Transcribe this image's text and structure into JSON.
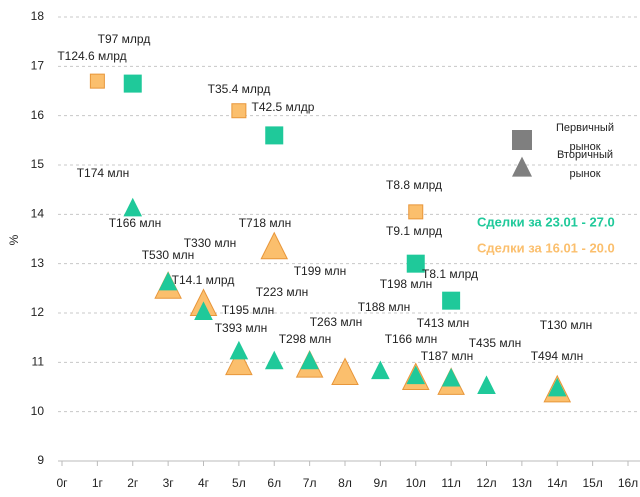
{
  "chart_data": {
    "type": "scatter",
    "y_label": "%",
    "categories": [
      "0г",
      "1г",
      "2г",
      "3г",
      "4г",
      "5л",
      "6л",
      "7л",
      "8л",
      "9л",
      "10л",
      "11л",
      "12л",
      "13л",
      "14л",
      "15л",
      "16л"
    ],
    "ylim": [
      9,
      18
    ],
    "yticks": [
      9,
      10,
      11,
      12,
      13,
      14,
      15,
      16,
      17,
      18
    ],
    "grid": true,
    "period_labels": [
      {
        "text": "Сделки за 23.01 - 27.0",
        "color": "#1fc99a"
      },
      {
        "text": "Сделки за 16.01 - 20.0",
        "color": "#fbbf6d"
      }
    ],
    "legend": [
      {
        "lines": [
          "Первичный",
          "рынок"
        ],
        "marker": "square",
        "color": "#7f7f7f"
      },
      {
        "lines": [
          "Вторичный",
          "рынок"
        ],
        "marker": "triangle",
        "color": "#7f7f7f"
      }
    ],
    "series": [
      {
        "period": 1,
        "marker": "triangle",
        "color": "#fbbf6d",
        "stroke": "#e8963a",
        "values": [
          null,
          null,
          null,
          12.5,
          12.15,
          10.95,
          13.3,
          10.9,
          10.75,
          null,
          10.65,
          10.55,
          null,
          null,
          10.4,
          null,
          null
        ]
      },
      {
        "period": 0,
        "marker": "triangle",
        "color": "#1fc99a",
        "stroke": "#1fc99a",
        "values": [
          null,
          null,
          14.1,
          12.6,
          12.0,
          11.2,
          11.0,
          11.0,
          null,
          10.8,
          10.7,
          10.65,
          10.5,
          null,
          10.45,
          null,
          null
        ]
      },
      {
        "period": 1,
        "marker": "square",
        "color": "#fbbf6d",
        "stroke": "#e8963a",
        "values": [
          null,
          16.7,
          null,
          null,
          null,
          16.1,
          null,
          null,
          null,
          null,
          14.05,
          null,
          null,
          null,
          null,
          null,
          null
        ]
      },
      {
        "period": 0,
        "marker": "square",
        "color": "#1fc99a",
        "stroke": "#1fc99a",
        "values": [
          null,
          null,
          16.65,
          null,
          null,
          null,
          15.6,
          null,
          null,
          null,
          13.0,
          12.25,
          null,
          null,
          null,
          null,
          null
        ]
      }
    ],
    "annotations": [
      "T97 млрд",
      "T124.6 млрд",
      "T35.4 млрд",
      "T42.5 млдр",
      "T174 млн",
      "T8.8 млрд",
      "T166 млн",
      "T718 млн",
      "T9.1 млрд",
      "T330 млн",
      "T530 млн",
      "T199 млн",
      "T198 млн",
      "T14.1 млрд",
      "T8.1 млрд",
      "T223 млн",
      "T195 млн",
      "T188 млн",
      "T393 млн",
      "T263 млн",
      "T413 млн",
      "T130 млн",
      "T298 млн",
      "T166 млн",
      "T435 млн",
      "T187 млн",
      "T494 млн"
    ]
  }
}
